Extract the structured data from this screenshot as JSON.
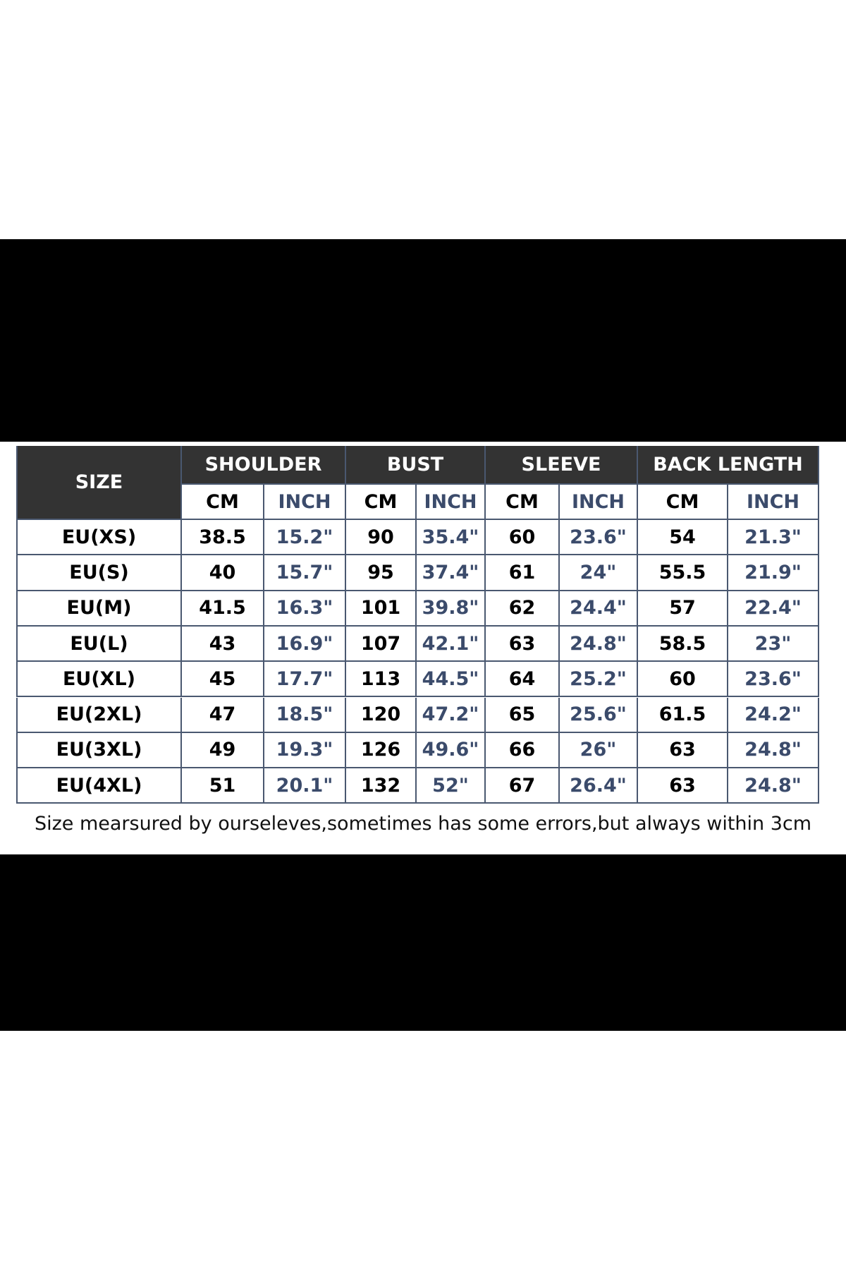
{
  "table": {
    "size_header": "SIZE",
    "groups": [
      "SHOULDER",
      "BUST",
      "SLEEVE",
      "BACK LENGTH"
    ],
    "units": [
      "CM",
      "INCH",
      "CM",
      "INCH",
      "CM",
      "INCH",
      "CM",
      "INCH"
    ],
    "rows": [
      [
        "EU(XS)",
        "38.5",
        "15.2\"",
        "90",
        "35.4\"",
        "60",
        "23.6\"",
        "54",
        "21.3\""
      ],
      [
        "EU(S)",
        "40",
        "15.7\"",
        "95",
        "37.4\"",
        "61",
        "24\"",
        "55.5",
        "21.9\""
      ],
      [
        "EU(M)",
        "41.5",
        "16.3\"",
        "101",
        "39.8\"",
        "62",
        "24.4\"",
        "57",
        "22.4\""
      ],
      [
        "EU(L)",
        "43",
        "16.9\"",
        "107",
        "42.1\"",
        "63",
        "24.8\"",
        "58.5",
        "23\""
      ],
      [
        "EU(XL)",
        "45",
        "17.7\"",
        "113",
        "44.5\"",
        "64",
        "25.2\"",
        "60",
        "23.6\""
      ],
      [
        "EU(2XL)",
        "47",
        "18.5\"",
        "120",
        "47.2\"",
        "65",
        "25.6\"",
        "61.5",
        "24.2\""
      ],
      [
        "EU(3XL)",
        "49",
        "19.3\"",
        "126",
        "49.6\"",
        "66",
        "26\"",
        "63",
        "24.8\""
      ],
      [
        "EU(4XL)",
        "51",
        "20.1\"",
        "132",
        "52\"",
        "67",
        "26.4\"",
        "63",
        "24.8\""
      ]
    ]
  },
  "footnote": "Size mearsured by ourseleves,sometimes has some errors,but always within 3cm"
}
